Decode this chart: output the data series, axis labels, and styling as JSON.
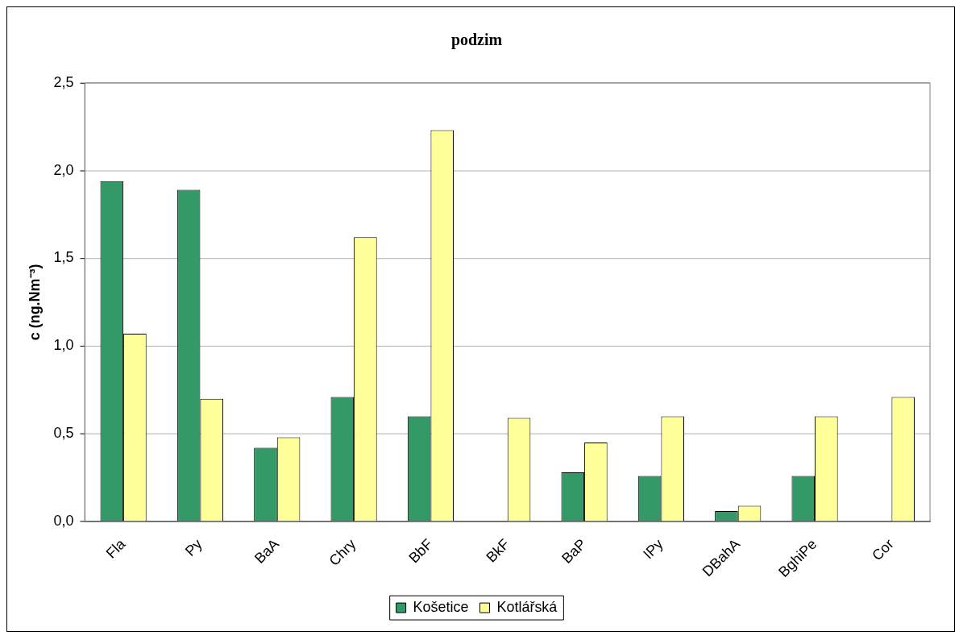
{
  "chart_data": {
    "type": "bar",
    "title": "podzim",
    "ylabel": "c (ng.Nm⁻³)",
    "categories": [
      "Fla",
      "Py",
      "BaA",
      "Chry",
      "BbF",
      "BkF",
      "BaP",
      "IPy",
      "DBahA",
      "BghiPe",
      "Cor"
    ],
    "series": [
      {
        "name": "Košetice",
        "color": "#339966",
        "values": [
          1.94,
          1.89,
          0.42,
          0.71,
          0.6,
          null,
          0.28,
          0.26,
          0.06,
          0.26,
          null
        ]
      },
      {
        "name": "Kotlářská",
        "color": "#ffff99",
        "values": [
          1.07,
          0.7,
          0.48,
          1.62,
          2.23,
          0.59,
          0.45,
          0.6,
          0.09,
          0.6,
          0.71
        ]
      }
    ],
    "ylim": [
      0,
      2.5
    ],
    "yticks": [
      {
        "value": 0,
        "label": "0,0"
      },
      {
        "value": 0.5,
        "label": "0,5"
      },
      {
        "value": 1,
        "label": "1,0"
      },
      {
        "value": 1.5,
        "label": "1,5"
      },
      {
        "value": 2,
        "label": "2,0"
      },
      {
        "value": 2.5,
        "label": "2,5"
      }
    ],
    "grid": "y",
    "legend": "bottom"
  }
}
